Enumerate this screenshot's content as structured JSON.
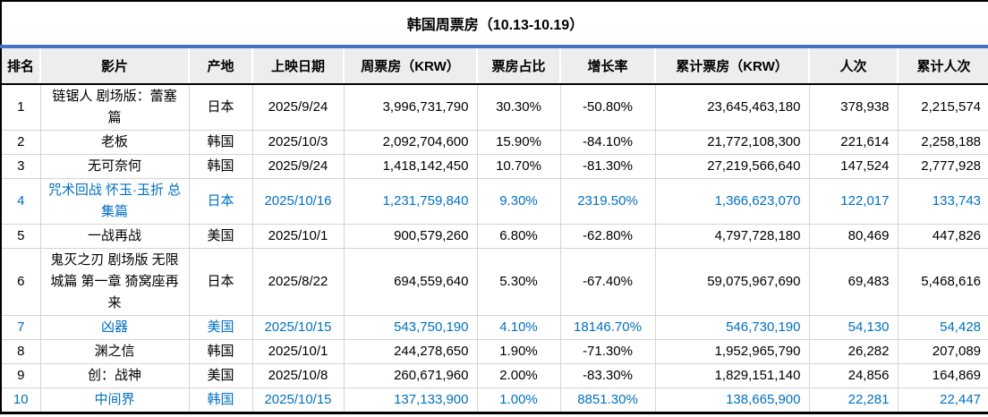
{
  "title": "韩国周票房（10.13-10.19）",
  "colors": {
    "accent_line_blue": "#4472C4",
    "header_bg": "#EDEDED",
    "highlight_text_blue": "#0070C0",
    "gridline": "#D4D4D4"
  },
  "table": {
    "headers": [
      "排名",
      "影片",
      "产地",
      "上映日期",
      "周票房（KRW）",
      "票房占比",
      "增长率",
      "累计票房（KRW）",
      "人次",
      "累计人次"
    ],
    "rows": [
      {
        "rank": "1",
        "film": "链锯人 剧场版：蕾塞篇",
        "origin": "日本",
        "release_date": "2025/9/24",
        "weekly_gross": "3,996,731,790",
        "share": "30.30%",
        "growth": "-50.80%",
        "cumulative_gross": "23,645,463,180",
        "admissions": "378,938",
        "cumulative_admissions": "2,215,574",
        "highlight": false
      },
      {
        "rank": "2",
        "film": "老板",
        "origin": "韩国",
        "release_date": "2025/10/3",
        "weekly_gross": "2,092,704,600",
        "share": "15.90%",
        "growth": "-84.10%",
        "cumulative_gross": "21,772,108,300",
        "admissions": "221,614",
        "cumulative_admissions": "2,258,188",
        "highlight": false
      },
      {
        "rank": "3",
        "film": "无可奈何",
        "origin": "韩国",
        "release_date": "2025/9/24",
        "weekly_gross": "1,418,142,450",
        "share": "10.70%",
        "growth": "-81.30%",
        "cumulative_gross": "27,219,566,640",
        "admissions": "147,524",
        "cumulative_admissions": "2,777,928",
        "highlight": false
      },
      {
        "rank": "4",
        "film": "咒术回战 怀玉·玉折 总集篇",
        "origin": "日本",
        "release_date": "2025/10/16",
        "weekly_gross": "1,231,759,840",
        "share": "9.30%",
        "growth": "2319.50%",
        "cumulative_gross": "1,366,623,070",
        "admissions": "122,017",
        "cumulative_admissions": "133,743",
        "highlight": true
      },
      {
        "rank": "5",
        "film": "一战再战",
        "origin": "美国",
        "release_date": "2025/10/1",
        "weekly_gross": "900,579,260",
        "share": "6.80%",
        "growth": "-62.80%",
        "cumulative_gross": "4,797,728,180",
        "admissions": "80,469",
        "cumulative_admissions": "447,826",
        "highlight": false
      },
      {
        "rank": "6",
        "film": "鬼灭之刃 剧场版 无限城篇 第一章 猗窝座再来",
        "origin": "日本",
        "release_date": "2025/8/22",
        "weekly_gross": "694,559,640",
        "share": "5.30%",
        "growth": "-67.40%",
        "cumulative_gross": "59,075,967,690",
        "admissions": "69,483",
        "cumulative_admissions": "5,468,616",
        "highlight": false
      },
      {
        "rank": "7",
        "film": "凶器",
        "origin": "美国",
        "release_date": "2025/10/15",
        "weekly_gross": "543,750,190",
        "share": "4.10%",
        "growth": "18146.70%",
        "cumulative_gross": "546,730,190",
        "admissions": "54,130",
        "cumulative_admissions": "54,428",
        "highlight": true
      },
      {
        "rank": "8",
        "film": "渊之信",
        "origin": "韩国",
        "release_date": "2025/10/1",
        "weekly_gross": "244,278,650",
        "share": "1.90%",
        "growth": "-71.30%",
        "cumulative_gross": "1,952,965,790",
        "admissions": "26,282",
        "cumulative_admissions": "207,089",
        "highlight": false
      },
      {
        "rank": "9",
        "film": "创：战神",
        "origin": "美国",
        "release_date": "2025/10/8",
        "weekly_gross": "260,671,960",
        "share": "2.00%",
        "growth": "-83.30%",
        "cumulative_gross": "1,829,151,140",
        "admissions": "24,856",
        "cumulative_admissions": "164,869",
        "highlight": false
      },
      {
        "rank": "10",
        "film": "中间界",
        "origin": "韩国",
        "release_date": "2025/10/15",
        "weekly_gross": "137,133,900",
        "share": "1.00%",
        "growth": "8851.30%",
        "cumulative_gross": "138,665,900",
        "admissions": "22,281",
        "cumulative_admissions": "22,447",
        "highlight": true
      }
    ]
  }
}
